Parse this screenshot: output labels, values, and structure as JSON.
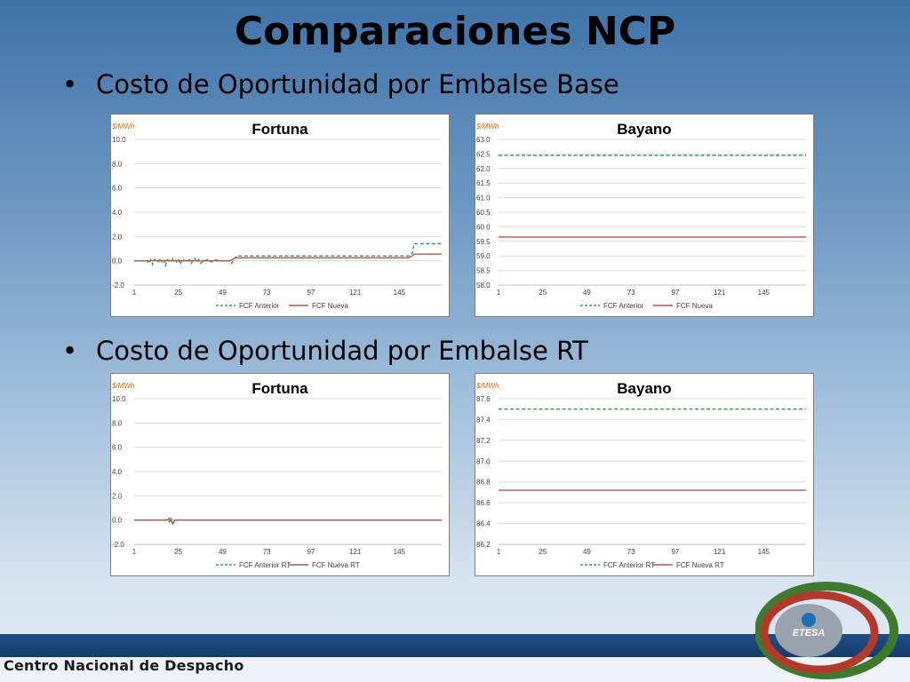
{
  "slide": {
    "title": "Comparaciones NCP",
    "bullets": [
      "Costo de Oportunidad por Embalse Base",
      "Costo de Oportunidad por Embalse RT"
    ],
    "footer": "Centro Nacional de Despacho",
    "logo_text": "ETESA"
  },
  "colors": {
    "anterior": "#2ca05a",
    "nueva": "#c0504d",
    "unit": "#e36c09",
    "grid": "#d9d9d9"
  },
  "chart_data": [
    {
      "type": "line",
      "title": "Fortuna",
      "unit": "$/MWh",
      "x_ticks": [
        1,
        25,
        49,
        73,
        97,
        121,
        145
      ],
      "xlim": [
        1,
        168
      ],
      "ylim": [
        -2,
        10
      ],
      "y_ticks": [
        "-2.0",
        "0.0",
        "2.0",
        "4.0",
        "6.0",
        "8.0",
        "10.0"
      ],
      "grid": true,
      "legend": "bottom",
      "series": [
        {
          "name": "FCF Anterior",
          "style": "dashed",
          "points": [
            [
              1,
              0
            ],
            [
              8,
              0
            ],
            [
              9,
              -0.2
            ],
            [
              10,
              0.1
            ],
            [
              11,
              -0.3
            ],
            [
              12,
              0.1
            ],
            [
              14,
              -0.1
            ],
            [
              15,
              0.2
            ],
            [
              16,
              -0.1
            ],
            [
              17,
              0.1
            ],
            [
              18,
              -0.4
            ],
            [
              19,
              0.1
            ],
            [
              21,
              -0.1
            ],
            [
              22,
              0.2
            ],
            [
              24,
              -0.1
            ],
            [
              25,
              0.1
            ],
            [
              26,
              -0.3
            ],
            [
              27,
              0.1
            ],
            [
              29,
              0
            ],
            [
              30,
              -0.1
            ],
            [
              31,
              0.1
            ],
            [
              32,
              -0.2
            ],
            [
              34,
              0.2
            ],
            [
              35,
              -0.1
            ],
            [
              36,
              0.1
            ],
            [
              37,
              -0.2
            ],
            [
              39,
              0
            ],
            [
              41,
              0.1
            ],
            [
              43,
              -0.1
            ],
            [
              45,
              0.1
            ],
            [
              47,
              0
            ],
            [
              49,
              0
            ],
            [
              53,
              0
            ],
            [
              54,
              -0.2
            ],
            [
              55,
              0.1
            ],
            [
              56,
              0.3
            ],
            [
              57,
              0.4
            ],
            [
              150,
              0.4
            ],
            [
              152,
              0.6
            ],
            [
              153,
              1.4
            ],
            [
              168,
              1.4
            ]
          ]
        },
        {
          "name": "FCF Nueva",
          "style": "solid",
          "points": [
            [
              1,
              0
            ],
            [
              50,
              0
            ],
            [
              53,
              0
            ],
            [
              56,
              0.25
            ],
            [
              150,
              0.25
            ],
            [
              152,
              0.4
            ],
            [
              153,
              0.55
            ],
            [
              168,
              0.55
            ]
          ]
        }
      ]
    },
    {
      "type": "line",
      "title": "Bayano",
      "unit": "$/MWh",
      "x_ticks": [
        1,
        25,
        49,
        73,
        97,
        121,
        145
      ],
      "xlim": [
        1,
        168
      ],
      "ylim": [
        58,
        63
      ],
      "y_ticks": [
        "58.0",
        "58.5",
        "59.0",
        "59.5",
        "60.0",
        "60.5",
        "61.0",
        "61.5",
        "62.0",
        "62.5",
        "63.0"
      ],
      "grid": true,
      "legend": "bottom",
      "series": [
        {
          "name": "FCF Anterior",
          "style": "dashed",
          "points": [
            [
              1,
              62.45
            ],
            [
              168,
              62.45
            ]
          ]
        },
        {
          "name": "FCF Nueva",
          "style": "solid",
          "points": [
            [
              1,
              59.65
            ],
            [
              168,
              59.65
            ]
          ]
        }
      ]
    },
    {
      "type": "line",
      "title": "Fortuna",
      "unit": "$/MWh",
      "x_ticks": [
        1,
        25,
        49,
        73,
        97,
        121,
        145
      ],
      "xlim": [
        1,
        168
      ],
      "ylim": [
        -2,
        10
      ],
      "y_ticks": [
        "-2.0",
        "0.0",
        "2.0",
        "4.0",
        "6.0",
        "8.0",
        "10.0"
      ],
      "grid": true,
      "legend": "bottom",
      "series": [
        {
          "name": "FCF Anterior RT",
          "style": "dashed",
          "points": [
            [
              1,
              0
            ],
            [
              19,
              0
            ],
            [
              20,
              -0.15
            ],
            [
              21,
              0.2
            ],
            [
              22,
              -0.25
            ],
            [
              23,
              0
            ],
            [
              168,
              0
            ]
          ]
        },
        {
          "name": "FCF Nueva RT",
          "style": "solid",
          "points": [
            [
              1,
              0
            ],
            [
              19,
              0
            ],
            [
              20,
              0.15
            ],
            [
              21,
              -0.1
            ],
            [
              22,
              -0.3
            ],
            [
              23,
              0
            ],
            [
              168,
              0
            ]
          ]
        }
      ]
    },
    {
      "type": "line",
      "title": "Bayano",
      "unit": "$/MWh",
      "x_ticks": [
        1,
        25,
        49,
        73,
        97,
        121,
        145
      ],
      "xlim": [
        1,
        168
      ],
      "ylim": [
        86.2,
        87.6
      ],
      "y_ticks": [
        "86.2",
        "86.4",
        "86.6",
        "86.8",
        "87.0",
        "87.2",
        "87.4",
        "87.6"
      ],
      "grid": true,
      "legend": "bottom",
      "series": [
        {
          "name": "FCF Anterior RT",
          "style": "dashed",
          "points": [
            [
              1,
              87.5
            ],
            [
              168,
              87.5
            ]
          ]
        },
        {
          "name": "FCF Nueva RT",
          "style": "solid",
          "points": [
            [
              1,
              86.72
            ],
            [
              168,
              86.72
            ]
          ]
        }
      ]
    }
  ]
}
